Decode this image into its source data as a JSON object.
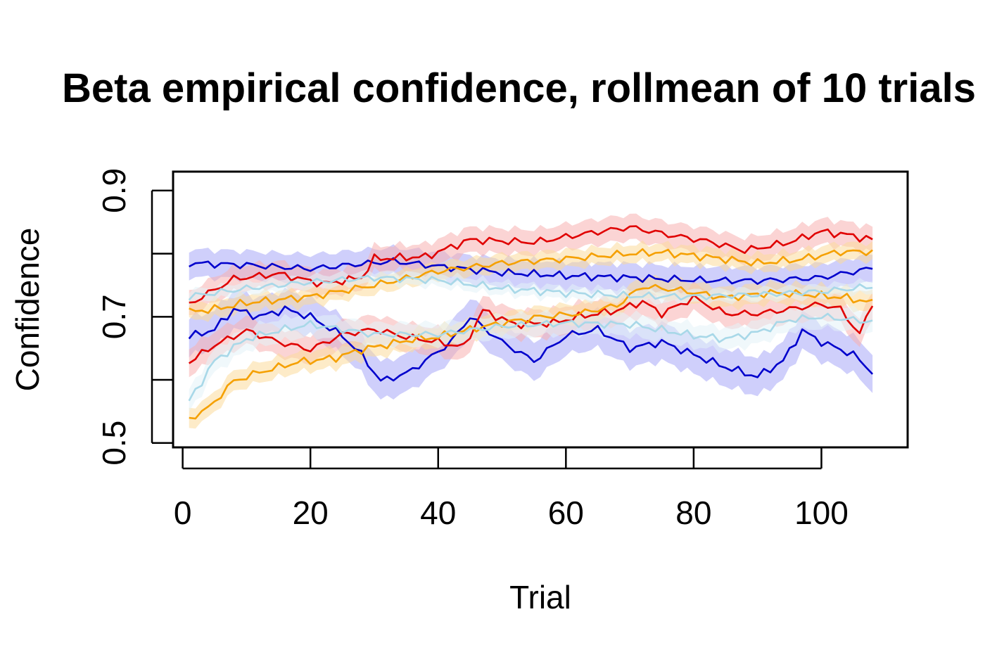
{
  "chart_data": {
    "type": "line",
    "title": "Beta empirical confidence, rollmean of  10 trials",
    "xlabel": "Trial",
    "ylabel": "Confidence",
    "xlim": [
      -1.5,
      113.5
    ],
    "ylim": [
      0.493,
      0.93
    ],
    "xticks": [
      0,
      20,
      40,
      60,
      80,
      100
    ],
    "xtick_labels": [
      "0",
      "20",
      "40",
      "60",
      "80",
      "100"
    ],
    "yticks": [
      0.5,
      0.6,
      0.7,
      0.8,
      0.9
    ],
    "ytick_labels": [
      "0.5",
      "",
      "0.7",
      "",
      "0.9"
    ],
    "grid": false,
    "bands": true,
    "series": [
      {
        "color": "#0000cc",
        "band": "#a8a8f8",
        "band_halfwidth": 0.022,
        "knots": [
          [
            1,
            0.785
          ],
          [
            10,
            0.782
          ],
          [
            20,
            0.776
          ],
          [
            27,
            0.783
          ],
          [
            33,
            0.788
          ],
          [
            40,
            0.78
          ],
          [
            50,
            0.77
          ],
          [
            60,
            0.765
          ],
          [
            70,
            0.762
          ],
          [
            80,
            0.758
          ],
          [
            90,
            0.757
          ],
          [
            100,
            0.762
          ],
          [
            108,
            0.777
          ]
        ]
      },
      {
        "color": "#0000cc",
        "band": "#a8a8f8",
        "band_halfwidth": 0.03,
        "knots": [
          [
            1,
            0.668
          ],
          [
            5,
            0.68
          ],
          [
            8,
            0.712
          ],
          [
            12,
            0.7
          ],
          [
            16,
            0.712
          ],
          [
            20,
            0.7
          ],
          [
            25,
            0.67
          ],
          [
            28,
            0.64
          ],
          [
            31,
            0.598
          ],
          [
            35,
            0.61
          ],
          [
            38,
            0.63
          ],
          [
            42,
            0.66
          ],
          [
            45,
            0.7
          ],
          [
            50,
            0.66
          ],
          [
            55,
            0.63
          ],
          [
            60,
            0.67
          ],
          [
            65,
            0.68
          ],
          [
            70,
            0.65
          ],
          [
            75,
            0.66
          ],
          [
            80,
            0.64
          ],
          [
            85,
            0.62
          ],
          [
            90,
            0.605
          ],
          [
            94,
            0.63
          ],
          [
            97,
            0.678
          ],
          [
            100,
            0.66
          ],
          [
            105,
            0.64
          ],
          [
            108,
            0.612
          ]
        ]
      },
      {
        "color": "#e00000",
        "band": "#f7b0b0",
        "band_halfwidth": 0.02,
        "knots": [
          [
            1,
            0.72
          ],
          [
            8,
            0.76
          ],
          [
            15,
            0.768
          ],
          [
            22,
            0.752
          ],
          [
            28,
            0.762
          ],
          [
            30,
            0.792
          ],
          [
            38,
            0.795
          ],
          [
            45,
            0.822
          ],
          [
            55,
            0.818
          ],
          [
            62,
            0.83
          ],
          [
            70,
            0.842
          ],
          [
            76,
            0.83
          ],
          [
            82,
            0.82
          ],
          [
            88,
            0.805
          ],
          [
            95,
            0.818
          ],
          [
            100,
            0.835
          ],
          [
            104,
            0.83
          ],
          [
            108,
            0.822
          ]
        ]
      },
      {
        "color": "#e00000",
        "band": "#f7b0b0",
        "band_halfwidth": 0.022,
        "knots": [
          [
            1,
            0.628
          ],
          [
            5,
            0.655
          ],
          [
            10,
            0.678
          ],
          [
            15,
            0.66
          ],
          [
            20,
            0.648
          ],
          [
            25,
            0.672
          ],
          [
            30,
            0.68
          ],
          [
            35,
            0.668
          ],
          [
            40,
            0.66
          ],
          [
            44,
            0.652
          ],
          [
            47,
            0.71
          ],
          [
            52,
            0.688
          ],
          [
            58,
            0.69
          ],
          [
            62,
            0.7
          ],
          [
            68,
            0.71
          ],
          [
            72,
            0.724
          ],
          [
            75,
            0.705
          ],
          [
            80,
            0.73
          ],
          [
            85,
            0.705
          ],
          [
            90,
            0.705
          ],
          [
            95,
            0.712
          ],
          [
            100,
            0.72
          ],
          [
            103,
            0.712
          ],
          [
            106,
            0.672
          ],
          [
            108,
            0.722
          ]
        ]
      },
      {
        "color": "#f5a000",
        "band": "#fbdb9a",
        "band_halfwidth": 0.014,
        "knots": [
          [
            1,
            0.708
          ],
          [
            5,
            0.712
          ],
          [
            10,
            0.722
          ],
          [
            20,
            0.732
          ],
          [
            30,
            0.75
          ],
          [
            40,
            0.772
          ],
          [
            50,
            0.785
          ],
          [
            60,
            0.792
          ],
          [
            70,
            0.8
          ],
          [
            75,
            0.802
          ],
          [
            82,
            0.795
          ],
          [
            90,
            0.785
          ],
          [
            96,
            0.79
          ],
          [
            103,
            0.803
          ],
          [
            108,
            0.803
          ]
        ]
      },
      {
        "color": "#f5a000",
        "band": "#fbdb9a",
        "band_halfwidth": 0.016,
        "knots": [
          [
            1,
            0.538
          ],
          [
            4,
            0.555
          ],
          [
            8,
            0.598
          ],
          [
            12,
            0.612
          ],
          [
            18,
            0.628
          ],
          [
            24,
            0.635
          ],
          [
            28,
            0.648
          ],
          [
            32,
            0.656
          ],
          [
            36,
            0.664
          ],
          [
            40,
            0.668
          ],
          [
            45,
            0.68
          ],
          [
            50,
            0.69
          ],
          [
            56,
            0.7
          ],
          [
            62,
            0.705
          ],
          [
            68,
            0.718
          ],
          [
            72,
            0.748
          ],
          [
            78,
            0.742
          ],
          [
            85,
            0.73
          ],
          [
            92,
            0.738
          ],
          [
            98,
            0.735
          ],
          [
            104,
            0.73
          ],
          [
            108,
            0.722
          ]
        ]
      },
      {
        "color": "#a8d8e8",
        "band": "#e4f3f8",
        "band_halfwidth": 0.01,
        "knots": [
          [
            1,
            0.732
          ],
          [
            10,
            0.745
          ],
          [
            20,
            0.755
          ],
          [
            30,
            0.762
          ],
          [
            40,
            0.758
          ],
          [
            50,
            0.745
          ],
          [
            60,
            0.738
          ],
          [
            70,
            0.733
          ],
          [
            80,
            0.732
          ],
          [
            90,
            0.735
          ],
          [
            100,
            0.74
          ],
          [
            108,
            0.748
          ]
        ]
      },
      {
        "color": "#a8d8e8",
        "band": "#e4f3f8",
        "band_halfwidth": 0.018,
        "knots": [
          [
            1,
            0.566
          ],
          [
            5,
            0.63
          ],
          [
            10,
            0.665
          ],
          [
            15,
            0.678
          ],
          [
            20,
            0.688
          ],
          [
            30,
            0.672
          ],
          [
            40,
            0.672
          ],
          [
            50,
            0.685
          ],
          [
            60,
            0.69
          ],
          [
            70,
            0.688
          ],
          [
            80,
            0.67
          ],
          [
            85,
            0.665
          ],
          [
            90,
            0.675
          ],
          [
            95,
            0.695
          ],
          [
            100,
            0.7
          ],
          [
            108,
            0.692
          ]
        ]
      }
    ]
  }
}
